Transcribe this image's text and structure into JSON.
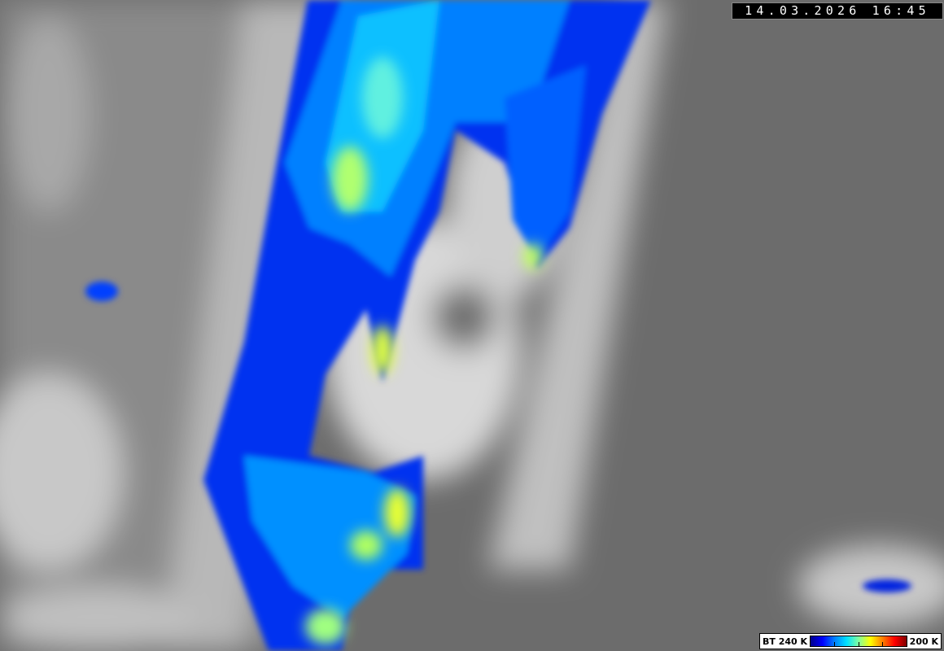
{
  "timestamp": "14.03.2026 16:45",
  "legend": {
    "left_label": "BT 240 K",
    "right_label": "200 K",
    "gradient_colors": [
      "#00008c",
      "#0000ff",
      "#0080ff",
      "#00e0ff",
      "#80ffa0",
      "#ffff00",
      "#ff8000",
      "#ff0000",
      "#800000"
    ]
  },
  "imagery": {
    "type": "infrared satellite image",
    "background_colors": [
      "#707070",
      "#a0a0a0",
      "#d8d8d8"
    ],
    "cloud_colors": [
      "#0010d0",
      "#0050ff",
      "#00b0ff",
      "#30e0ff",
      "#c0ff60",
      "#ffff30"
    ]
  }
}
